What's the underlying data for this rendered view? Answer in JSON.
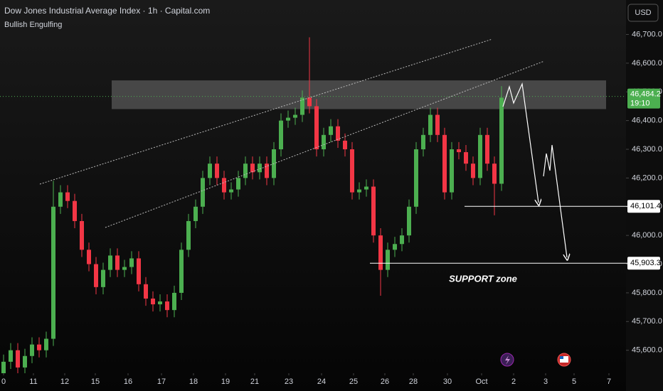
{
  "chart_data": {
    "type": "candlestick",
    "title": "Dow Jones Industrial Average Index · 1h · Capital.com",
    "subtitle": "Bullish Engulfing",
    "currency": "USD",
    "annotation": "SUPPORT zone",
    "up_color": "#4caf50",
    "down_color": "#f23645",
    "xlim": [
      -0.5,
      87.5
    ],
    "ylim": [
      45520,
      46820
    ],
    "xticks": [
      {
        "value": 0,
        "label": "0"
      },
      {
        "value": 4.2,
        "label": "11"
      },
      {
        "value": 8.6,
        "label": "12"
      },
      {
        "value": 12.9,
        "label": "15"
      },
      {
        "value": 17.5,
        "label": "16"
      },
      {
        "value": 22.2,
        "label": "17"
      },
      {
        "value": 26.7,
        "label": "18"
      },
      {
        "value": 31.2,
        "label": "19"
      },
      {
        "value": 35.3,
        "label": "21"
      },
      {
        "value": 40.1,
        "label": "23"
      },
      {
        "value": 44.7,
        "label": "24"
      },
      {
        "value": 49.2,
        "label": "25"
      },
      {
        "value": 53.6,
        "label": "26"
      },
      {
        "value": 57.6,
        "label": "28"
      },
      {
        "value": 62.4,
        "label": "30"
      },
      {
        "value": 67.2,
        "label": "Oct"
      },
      {
        "value": 71.7,
        "label": "2"
      },
      {
        "value": 76.2,
        "label": "3"
      },
      {
        "value": 80.2,
        "label": "5"
      },
      {
        "value": 85.1,
        "label": "7"
      }
    ],
    "yticks": [
      {
        "value": 45600,
        "label": "45,600.0"
      },
      {
        "value": 45700,
        "label": "45,700.0"
      },
      {
        "value": 45800,
        "label": "45,800.0"
      },
      {
        "value": 45900,
        "label": "45,900.0"
      },
      {
        "value": 46000,
        "label": "46,000.0"
      },
      {
        "value": 46100,
        "label": "46,100.0"
      },
      {
        "value": 46200,
        "label": "46,200.0"
      },
      {
        "value": 46300,
        "label": "46,300.0"
      },
      {
        "value": 46400,
        "label": "46,400.0"
      },
      {
        "value": 46500,
        "label": "46,500.0"
      },
      {
        "value": 46600,
        "label": "46,600.0"
      },
      {
        "value": 46700,
        "label": "46,700.0"
      }
    ],
    "zone": [
      46440,
      46540
    ],
    "last_price": {
      "value": 46484.2,
      "label": "46,484.2",
      "countdown": "19:10"
    },
    "levels": [
      {
        "value": 46101.4,
        "label": "46,101.4"
      },
      {
        "value": 45903.3,
        "label": "45,903.3"
      }
    ],
    "x": [
      0,
      1,
      2,
      3,
      4,
      5,
      6,
      7,
      8,
      9,
      10,
      11,
      12,
      13,
      14,
      15,
      16,
      17,
      18,
      19,
      20,
      21,
      22,
      23,
      24,
      25,
      26,
      27,
      28,
      29,
      30,
      31,
      32,
      33,
      34,
      35,
      36,
      37,
      38,
      39,
      40,
      41,
      42,
      43,
      44,
      45,
      46,
      47,
      48,
      49,
      50,
      51,
      52,
      53,
      54,
      55,
      56,
      57,
      58,
      59,
      60,
      61,
      62,
      63,
      64,
      65,
      66,
      67,
      68,
      69,
      70
    ],
    "open": [
      45520,
      45560,
      45600,
      45540,
      45580,
      45620,
      45600,
      45640,
      46100,
      46150,
      46120,
      46050,
      45950,
      45900,
      45820,
      45880,
      45930,
      45880,
      45890,
      45920,
      45830,
      45780,
      45760,
      45770,
      45740,
      45800,
      45950,
      46050,
      46100,
      46200,
      46250,
      46200,
      46150,
      46160,
      46200,
      46250,
      46220,
      46250,
      46200,
      46300,
      46400,
      46410,
      46420,
      46480,
      46450,
      46300,
      46350,
      46380,
      46330,
      46300,
      46150,
      46160,
      46170,
      46000,
      45880,
      45950,
      45970,
      46000,
      46100,
      46300,
      46350,
      46420,
      46350,
      46150,
      46300,
      46290,
      46250,
      46200,
      46350,
      46250,
      46180
    ],
    "high": [
      45585,
      45625,
      45625,
      45605,
      45645,
      45645,
      45665,
      46190,
      46175,
      46175,
      46145,
      46075,
      45975,
      45925,
      45905,
      45955,
      45955,
      45915,
      45945,
      45945,
      45855,
      45805,
      45795,
      45795,
      45825,
      45975,
      46075,
      46125,
      46225,
      46275,
      46275,
      46225,
      46185,
      46225,
      46275,
      46275,
      46275,
      46275,
      46325,
      46425,
      46435,
      46445,
      46505,
      46690,
      46475,
      46375,
      46405,
      46405,
      46355,
      46325,
      46185,
      46195,
      46195,
      46025,
      45975,
      45995,
      46025,
      46125,
      46325,
      46375,
      46445,
      46445,
      46375,
      46325,
      46325,
      46315,
      46275,
      46375,
      46375,
      46275,
      46520
    ],
    "low": [
      45495,
      45535,
      45515,
      45515,
      45555,
      45575,
      45575,
      45615,
      46075,
      46095,
      46025,
      45925,
      45875,
      45795,
      45795,
      45855,
      45855,
      45855,
      45865,
      45805,
      45755,
      45735,
      45735,
      45715,
      45715,
      45775,
      45925,
      46025,
      46075,
      46175,
      46175,
      46125,
      46125,
      46135,
      46175,
      46195,
      46195,
      46175,
      46175,
      46275,
      46375,
      46385,
      46395,
      46425,
      46275,
      46275,
      46325,
      46305,
      46275,
      46125,
      46125,
      46135,
      45975,
      45790,
      45855,
      45925,
      45945,
      45975,
      46075,
      46275,
      46325,
      46325,
      46125,
      46125,
      46265,
      46225,
      46175,
      46175,
      46225,
      46070,
      46155
    ],
    "close": [
      45560,
      45600,
      45540,
      45580,
      45620,
      45600,
      45640,
      46100,
      46150,
      46120,
      46050,
      45950,
      45900,
      45820,
      45880,
      45930,
      45880,
      45890,
      45920,
      45830,
      45780,
      45760,
      45770,
      45740,
      45800,
      45950,
      46050,
      46100,
      46200,
      46250,
      46200,
      46150,
      46160,
      46200,
      46250,
      46220,
      46250,
      46200,
      46300,
      46400,
      46410,
      46420,
      46480,
      46450,
      46300,
      46350,
      46380,
      46330,
      46300,
      46150,
      46160,
      46170,
      46000,
      45880,
      45950,
      45970,
      46000,
      46100,
      46300,
      46350,
      46420,
      46350,
      46150,
      46300,
      46290,
      46250,
      46200,
      46350,
      46250,
      46180,
      46480
    ]
  }
}
